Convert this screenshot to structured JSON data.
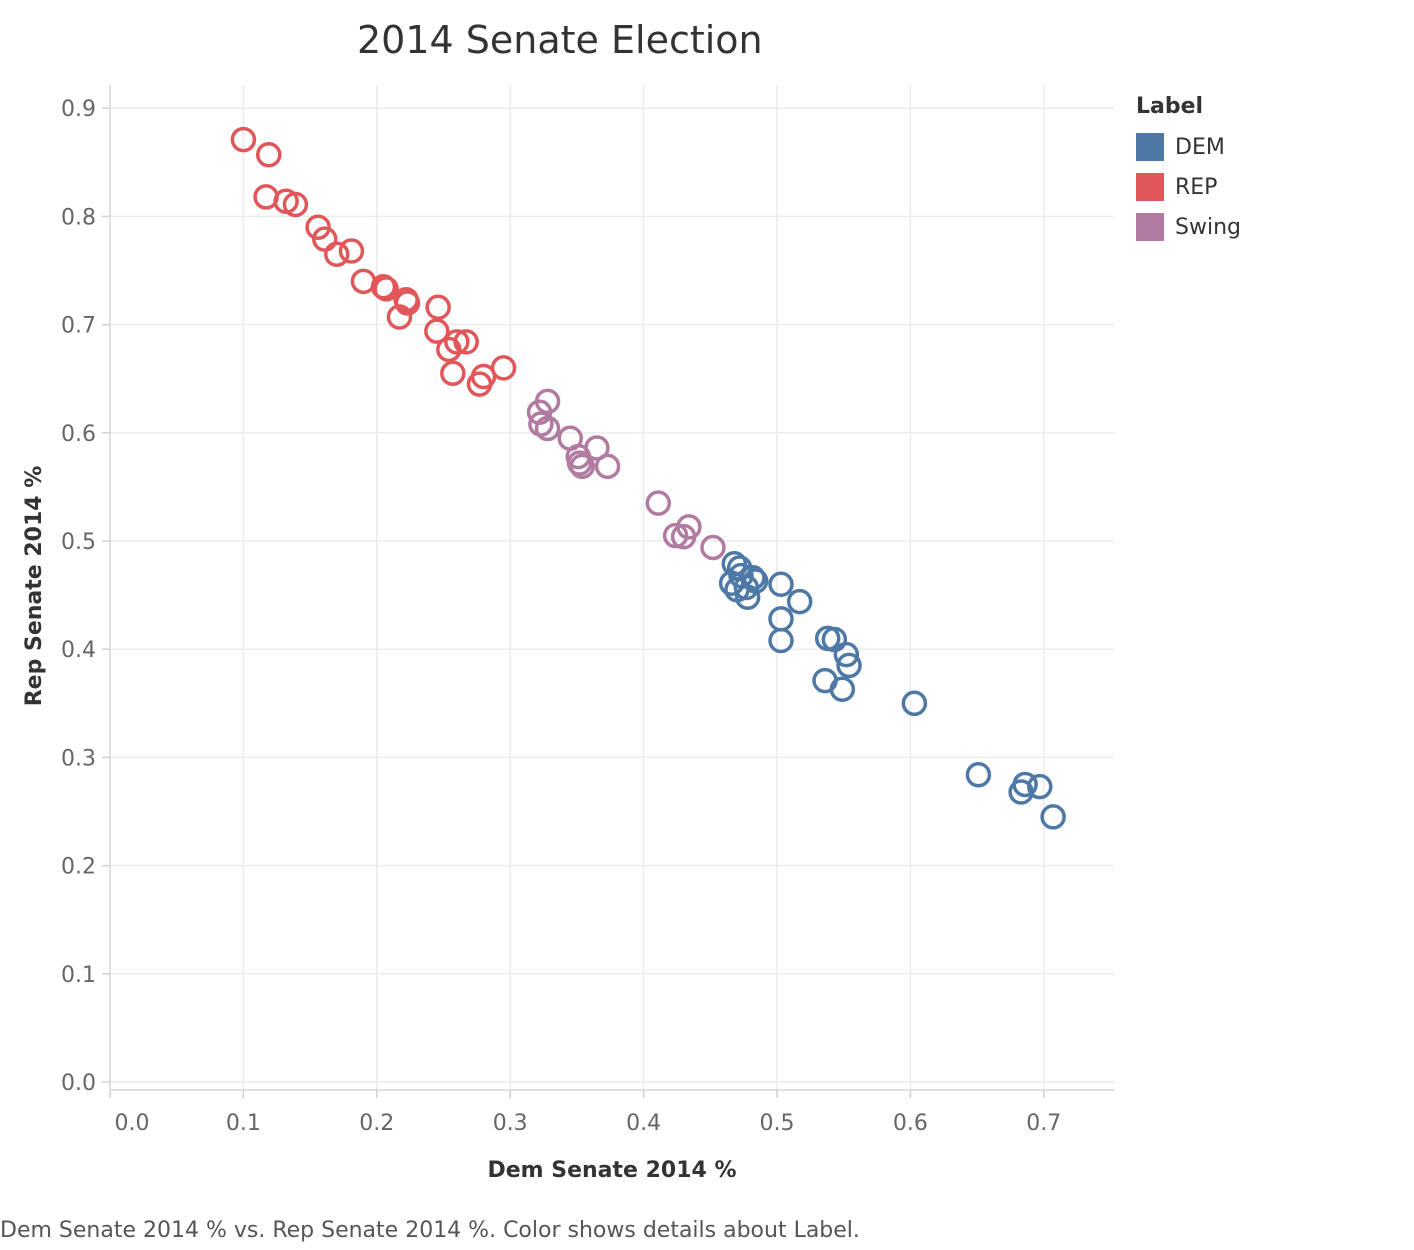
{
  "chart_data": {
    "type": "scatter",
    "title": "2014 Senate Election",
    "xlabel": "Dem Senate 2014 %",
    "ylabel": "Rep Senate 2014 %",
    "xlim": [
      0.0,
      0.75
    ],
    "ylim": [
      0.0,
      0.9
    ],
    "xticks": [
      "0.0",
      "0.1",
      "0.2",
      "0.3",
      "0.4",
      "0.5",
      "0.6",
      "0.7"
    ],
    "yticks": [
      "0.0",
      "0.1",
      "0.2",
      "0.3",
      "0.4",
      "0.5",
      "0.6",
      "0.7",
      "0.8",
      "0.9"
    ],
    "grid": true,
    "marker": "open-circle",
    "legend": {
      "title": "Label",
      "position": "right",
      "entries": [
        {
          "name": "DEM",
          "color": "#4e79a7"
        },
        {
          "name": "REP",
          "color": "#e15759"
        },
        {
          "name": "Swing",
          "color": "#b07aa1"
        }
      ]
    },
    "series": [
      {
        "name": "REP",
        "color": "#e15759",
        "points": [
          [
            0.1,
            0.871
          ],
          [
            0.119,
            0.857
          ],
          [
            0.117,
            0.818
          ],
          [
            0.132,
            0.814
          ],
          [
            0.139,
            0.811
          ],
          [
            0.156,
            0.79
          ],
          [
            0.161,
            0.779
          ],
          [
            0.17,
            0.765
          ],
          [
            0.181,
            0.768
          ],
          [
            0.19,
            0.74
          ],
          [
            0.205,
            0.735
          ],
          [
            0.207,
            0.733
          ],
          [
            0.222,
            0.723
          ],
          [
            0.223,
            0.72
          ],
          [
            0.217,
            0.707
          ],
          [
            0.246,
            0.716
          ],
          [
            0.245,
            0.694
          ],
          [
            0.254,
            0.677
          ],
          [
            0.26,
            0.684
          ],
          [
            0.267,
            0.684
          ],
          [
            0.257,
            0.655
          ],
          [
            0.277,
            0.645
          ],
          [
            0.28,
            0.652
          ],
          [
            0.295,
            0.66
          ]
        ]
      },
      {
        "name": "Swing",
        "color": "#b07aa1",
        "points": [
          [
            0.328,
            0.629
          ],
          [
            0.322,
            0.619
          ],
          [
            0.323,
            0.608
          ],
          [
            0.328,
            0.604
          ],
          [
            0.345,
            0.595
          ],
          [
            0.351,
            0.578
          ],
          [
            0.352,
            0.572
          ],
          [
            0.354,
            0.569
          ],
          [
            0.365,
            0.586
          ],
          [
            0.373,
            0.569
          ],
          [
            0.411,
            0.535
          ],
          [
            0.424,
            0.505
          ],
          [
            0.43,
            0.504
          ],
          [
            0.434,
            0.513
          ],
          [
            0.452,
            0.494
          ]
        ]
      },
      {
        "name": "DEM",
        "color": "#4e79a7",
        "points": [
          [
            0.468,
            0.479
          ],
          [
            0.472,
            0.475
          ],
          [
            0.473,
            0.468
          ],
          [
            0.466,
            0.461
          ],
          [
            0.47,
            0.455
          ],
          [
            0.477,
            0.457
          ],
          [
            0.478,
            0.448
          ],
          [
            0.482,
            0.466
          ],
          [
            0.484,
            0.463
          ],
          [
            0.503,
            0.46
          ],
          [
            0.517,
            0.444
          ],
          [
            0.503,
            0.428
          ],
          [
            0.503,
            0.408
          ],
          [
            0.538,
            0.41
          ],
          [
            0.543,
            0.409
          ],
          [
            0.552,
            0.395
          ],
          [
            0.554,
            0.385
          ],
          [
            0.536,
            0.371
          ],
          [
            0.549,
            0.363
          ],
          [
            0.603,
            0.35
          ],
          [
            0.651,
            0.284
          ],
          [
            0.683,
            0.268
          ],
          [
            0.686,
            0.275
          ],
          [
            0.697,
            0.273
          ],
          [
            0.707,
            0.245
          ]
        ]
      }
    ]
  },
  "caption": "Dem Senate 2014 % vs. Rep Senate 2014 %.  Color shows details about Label."
}
